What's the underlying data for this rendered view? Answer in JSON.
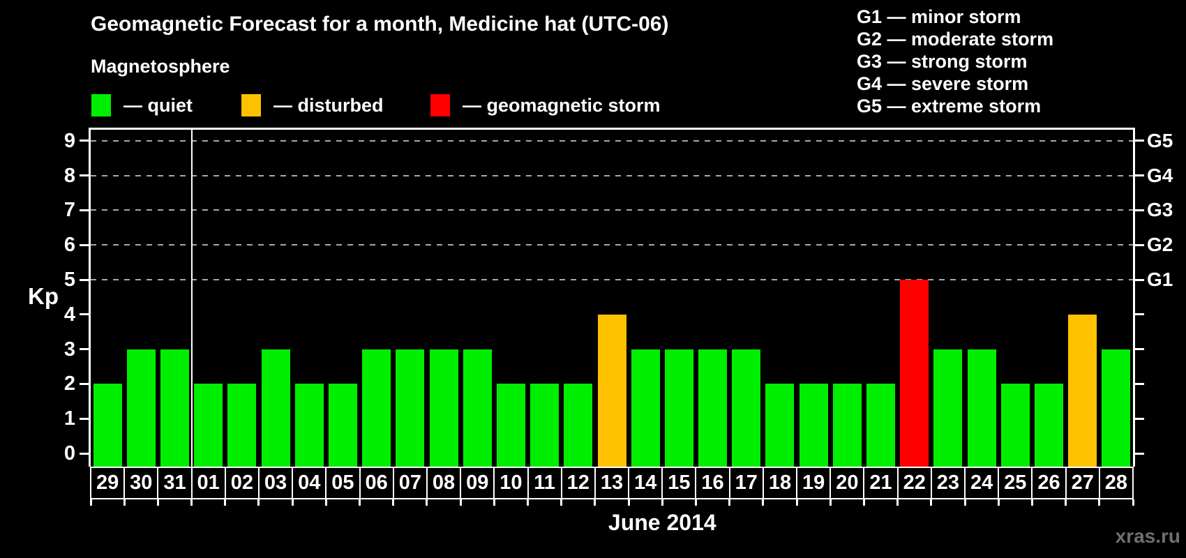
{
  "header": {
    "title": "Geomagnetic Forecast for a month, Medicine hat (UTC-06)",
    "subtitle": "Magnetosphere"
  },
  "legend": {
    "items": [
      {
        "key": "quiet",
        "label": "— quiet",
        "color": "#00ee00"
      },
      {
        "key": "disturbed",
        "label": "— disturbed",
        "color": "#ffc200"
      },
      {
        "key": "storm",
        "label": "— geomagnetic storm",
        "color": "#ff0000"
      }
    ]
  },
  "g_legend": {
    "items": [
      "G1 — minor storm",
      "G2 — moderate storm",
      "G3 — strong storm",
      "G4 — severe storm",
      "G5 — extreme storm"
    ]
  },
  "chart_data": {
    "type": "bar",
    "title": "Geomagnetic Forecast for a month, Medicine hat (UTC-06)",
    "subtitle": "Magnetosphere",
    "ylabel": "Kp",
    "xlabel": "June 2014",
    "ylim": [
      0,
      9
    ],
    "yticks": [
      0,
      1,
      2,
      3,
      4,
      5,
      6,
      7,
      8,
      9
    ],
    "gridlines_at": [
      5,
      6,
      7,
      8,
      9
    ],
    "grid": "dashed",
    "right_axis_labels": [
      {
        "kp": 5,
        "label": "G1"
      },
      {
        "kp": 6,
        "label": "G2"
      },
      {
        "kp": 7,
        "label": "G3"
      },
      {
        "kp": 8,
        "label": "G4"
      },
      {
        "kp": 9,
        "label": "G5"
      }
    ],
    "month_separator_after_index": 3,
    "categories": [
      "29",
      "30",
      "31",
      "01",
      "02",
      "03",
      "04",
      "05",
      "06",
      "07",
      "08",
      "09",
      "10",
      "11",
      "12",
      "13",
      "14",
      "15",
      "16",
      "17",
      "18",
      "19",
      "20",
      "21",
      "22",
      "23",
      "24",
      "25",
      "26",
      "27",
      "28"
    ],
    "values": [
      2,
      3,
      3,
      2,
      2,
      3,
      2,
      2,
      3,
      3,
      3,
      3,
      2,
      2,
      2,
      4,
      3,
      3,
      3,
      3,
      2,
      2,
      2,
      2,
      5,
      3,
      3,
      2,
      2,
      4,
      3
    ],
    "statuses": [
      "quiet",
      "quiet",
      "quiet",
      "quiet",
      "quiet",
      "quiet",
      "quiet",
      "quiet",
      "quiet",
      "quiet",
      "quiet",
      "quiet",
      "quiet",
      "quiet",
      "quiet",
      "disturbed",
      "quiet",
      "quiet",
      "quiet",
      "quiet",
      "quiet",
      "quiet",
      "quiet",
      "quiet",
      "storm",
      "quiet",
      "quiet",
      "quiet",
      "quiet",
      "disturbed",
      "quiet"
    ]
  },
  "footer": {
    "month_label": "June 2014",
    "watermark": "xras.ru"
  }
}
